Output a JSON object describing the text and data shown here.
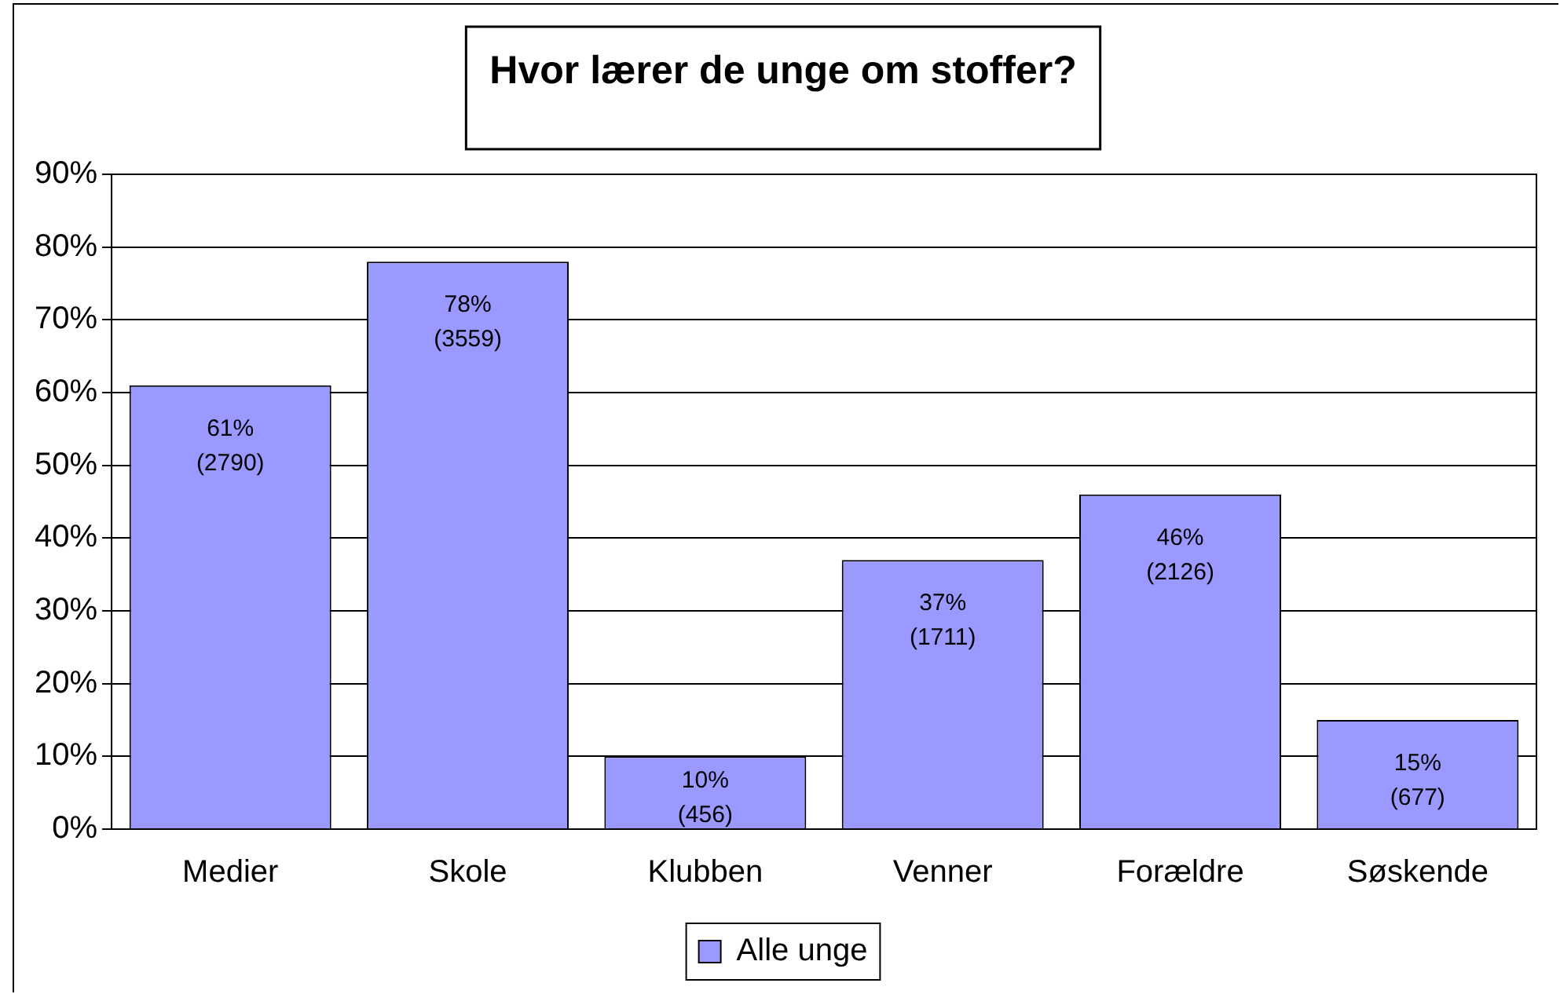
{
  "chart_data": {
    "type": "bar",
    "title": "Hvor lærer de unge om stoffer?",
    "categories": [
      "Medier",
      "Skole",
      "Klubben",
      "Venner",
      "Forældre",
      "Søskende"
    ],
    "series": [
      {
        "name": "Alle unge",
        "color": "#9999ff",
        "values": [
          61,
          78,
          10,
          37,
          46,
          15
        ],
        "value_labels": [
          "61% (2790)",
          "78% (3559)",
          "10% (456)",
          "37% (1711)",
          "46% (2126)",
          "15% (677)"
        ]
      }
    ],
    "ylim": [
      0,
      90
    ],
    "yticks": [
      {
        "value": 0,
        "label": "0%"
      },
      {
        "value": 10,
        "label": "10%"
      },
      {
        "value": 20,
        "label": "20%"
      },
      {
        "value": 30,
        "label": "30%"
      },
      {
        "value": 40,
        "label": "40%"
      },
      {
        "value": 50,
        "label": "50%"
      },
      {
        "value": 60,
        "label": "60%"
      },
      {
        "value": 70,
        "label": "70%"
      },
      {
        "value": 80,
        "label": "80%"
      },
      {
        "value": 90,
        "label": "90%"
      }
    ],
    "grid": "y",
    "legend": "bottom"
  }
}
